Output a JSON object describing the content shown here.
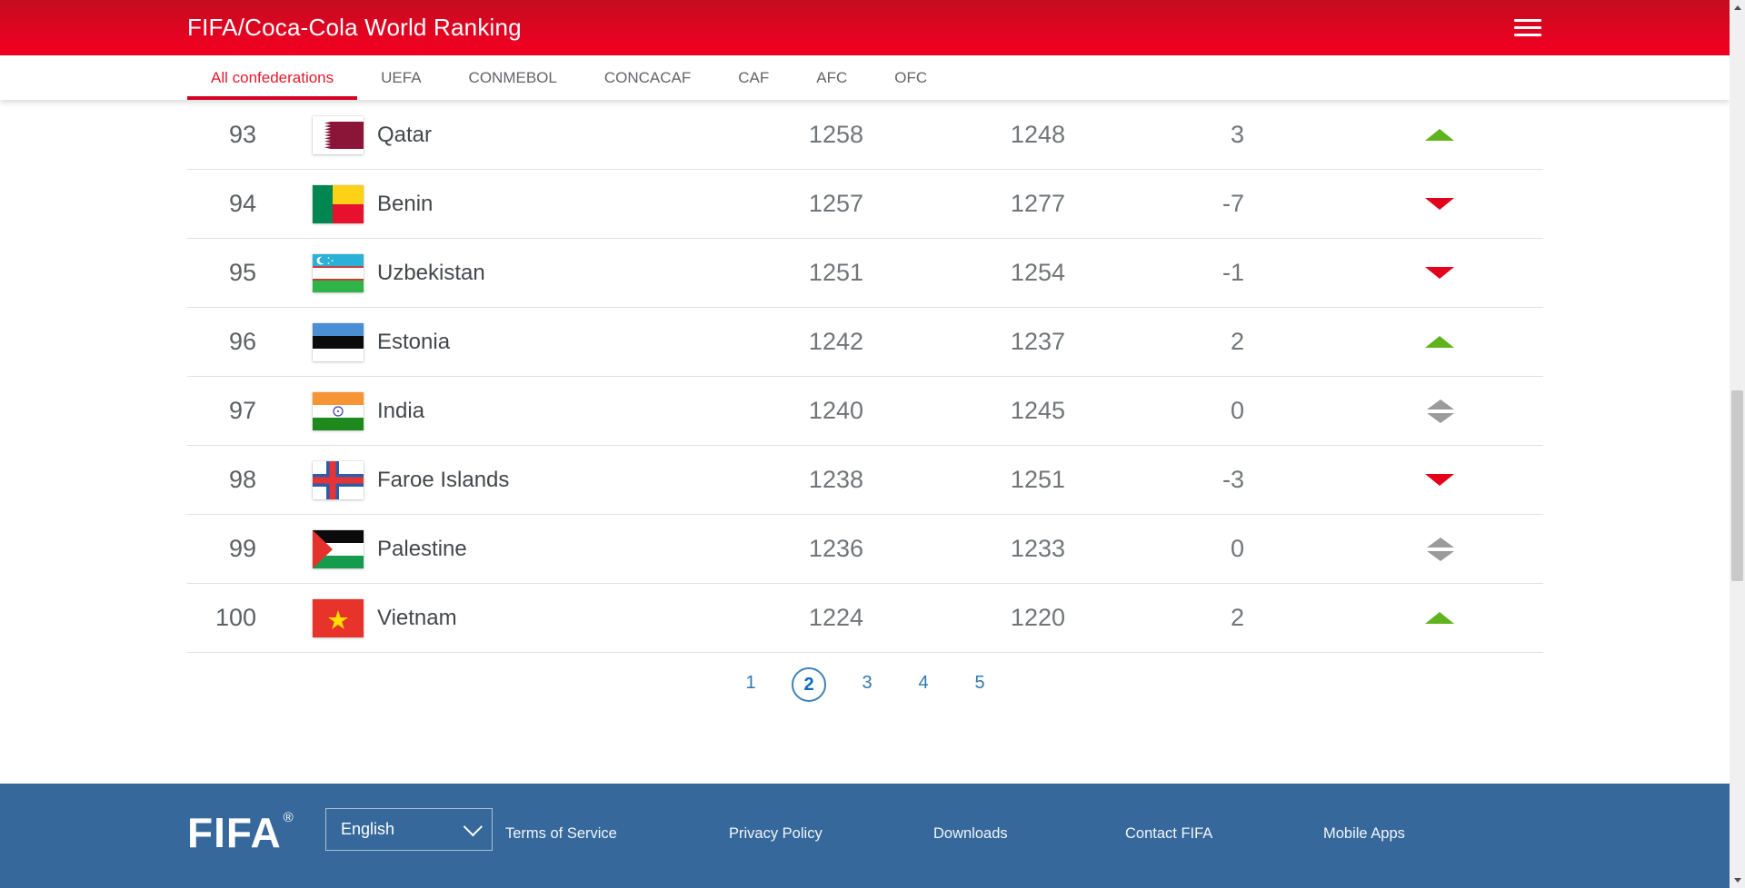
{
  "header": {
    "title": "FIFA/Coca-Cola World Ranking"
  },
  "tabs": [
    {
      "label": "All confederations",
      "active": true
    },
    {
      "label": "UEFA",
      "active": false
    },
    {
      "label": "CONMEBOL",
      "active": false
    },
    {
      "label": "CONCACAF",
      "active": false
    },
    {
      "label": "CAF",
      "active": false
    },
    {
      "label": "AFC",
      "active": false
    },
    {
      "label": "OFC",
      "active": false
    }
  ],
  "ranking": {
    "rows": [
      {
        "rank": "93",
        "country": "Qatar",
        "flag": "qatar",
        "points": "1258",
        "previous_points": "1248",
        "change": "3",
        "trend": "up"
      },
      {
        "rank": "94",
        "country": "Benin",
        "flag": "benin",
        "points": "1257",
        "previous_points": "1277",
        "change": "-7",
        "trend": "down"
      },
      {
        "rank": "95",
        "country": "Uzbekistan",
        "flag": "uzbekistan",
        "points": "1251",
        "previous_points": "1254",
        "change": "-1",
        "trend": "down"
      },
      {
        "rank": "96",
        "country": "Estonia",
        "flag": "estonia",
        "points": "1242",
        "previous_points": "1237",
        "change": "2",
        "trend": "up"
      },
      {
        "rank": "97",
        "country": "India",
        "flag": "india",
        "points": "1240",
        "previous_points": "1245",
        "change": "0",
        "trend": "equal"
      },
      {
        "rank": "98",
        "country": "Faroe Islands",
        "flag": "faroe-islands",
        "points": "1238",
        "previous_points": "1251",
        "change": "-3",
        "trend": "down"
      },
      {
        "rank": "99",
        "country": "Palestine",
        "flag": "palestine",
        "points": "1236",
        "previous_points": "1233",
        "change": "0",
        "trend": "equal"
      },
      {
        "rank": "100",
        "country": "Vietnam",
        "flag": "vietnam",
        "points": "1224",
        "previous_points": "1220",
        "change": "2",
        "trend": "up"
      }
    ]
  },
  "pagination": {
    "pages": [
      "1",
      "2",
      "3",
      "4",
      "5"
    ],
    "active_page": "2"
  },
  "footer": {
    "logo": "FIFA",
    "logo_reg": "®",
    "language": {
      "value": "English",
      "icon": "chevron-down-icon"
    },
    "links": [
      "Terms of Service",
      "Privacy Policy",
      "Downloads",
      "Contact FIFA",
      "Mobile Apps"
    ]
  },
  "colors": {
    "header_red": "#e50019",
    "active_tab_red": "#e8192c",
    "trend_up_green": "#61b31e",
    "trend_down_red": "#e2001a",
    "trend_equal_gray": "#9b9b9b",
    "pagination_blue": "#2e77b2",
    "footer_blue": "#36689b"
  }
}
